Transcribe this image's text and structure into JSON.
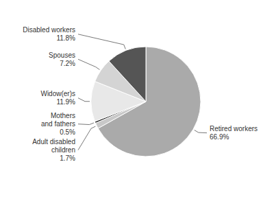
{
  "chart_data": {
    "type": "pie",
    "categories": [
      "Retired workers",
      "Adult disabled\nchildren",
      "Mothers\nand fathers",
      "Widow(er)s",
      "Spouses",
      "Disabled workers"
    ],
    "values": [
      66.9,
      1.7,
      0.5,
      11.9,
      7.2,
      11.8
    ],
    "value_labels": [
      "66.9%",
      "1.7%",
      "0.5%",
      "11.9%",
      "7.2%",
      "11.8%"
    ],
    "colors": [
      "#aaaaaa",
      "#c8c8c8",
      "#111111",
      "#e8e8e8",
      "#d4d4d4",
      "#555555"
    ],
    "data_labels": true
  }
}
